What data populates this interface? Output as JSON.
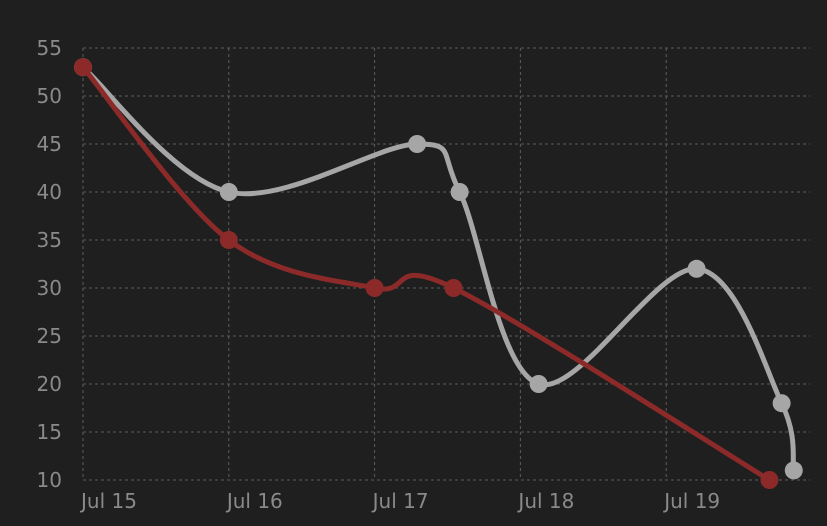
{
  "chart_data": {
    "type": "line",
    "title": "",
    "xlabel": "",
    "ylabel": "",
    "x_tick_labels": [
      "Jul 15",
      "Jul 16",
      "Jul 17",
      "Jul 18",
      "Jul 19"
    ],
    "y_tick_labels": [
      "10",
      "15",
      "20",
      "25",
      "30",
      "35",
      "40",
      "45",
      "50",
      "55"
    ],
    "xlim": [
      "2024-07-15T00:00",
      "2024-07-19T21:00"
    ],
    "ylim": [
      10,
      55
    ],
    "grid": true,
    "legend": "none",
    "series": [
      {
        "color": "#a6a6a6",
        "smooth": true,
        "points": [
          {
            "x": "2024-07-15T00:00",
            "y": 53
          },
          {
            "x": "2024-07-16T00:00",
            "y": 40
          },
          {
            "x": "2024-07-17T07:00",
            "y": 45
          },
          {
            "x": "2024-07-17T14:00",
            "y": 40
          },
          {
            "x": "2024-07-18T03:00",
            "y": 20
          },
          {
            "x": "2024-07-19T05:00",
            "y": 32
          },
          {
            "x": "2024-07-19T19:00",
            "y": 18
          },
          {
            "x": "2024-07-19T21:00",
            "y": 11
          }
        ]
      },
      {
        "color": "#8c2a2a",
        "smooth": true,
        "points": [
          {
            "x": "2024-07-15T00:00",
            "y": 53
          },
          {
            "x": "2024-07-16T00:00",
            "y": 35
          },
          {
            "x": "2024-07-17T00:00",
            "y": 30
          },
          {
            "x": "2024-07-17T13:00",
            "y": 30
          },
          {
            "x": "2024-07-19T17:00",
            "y": 10
          }
        ]
      }
    ]
  }
}
